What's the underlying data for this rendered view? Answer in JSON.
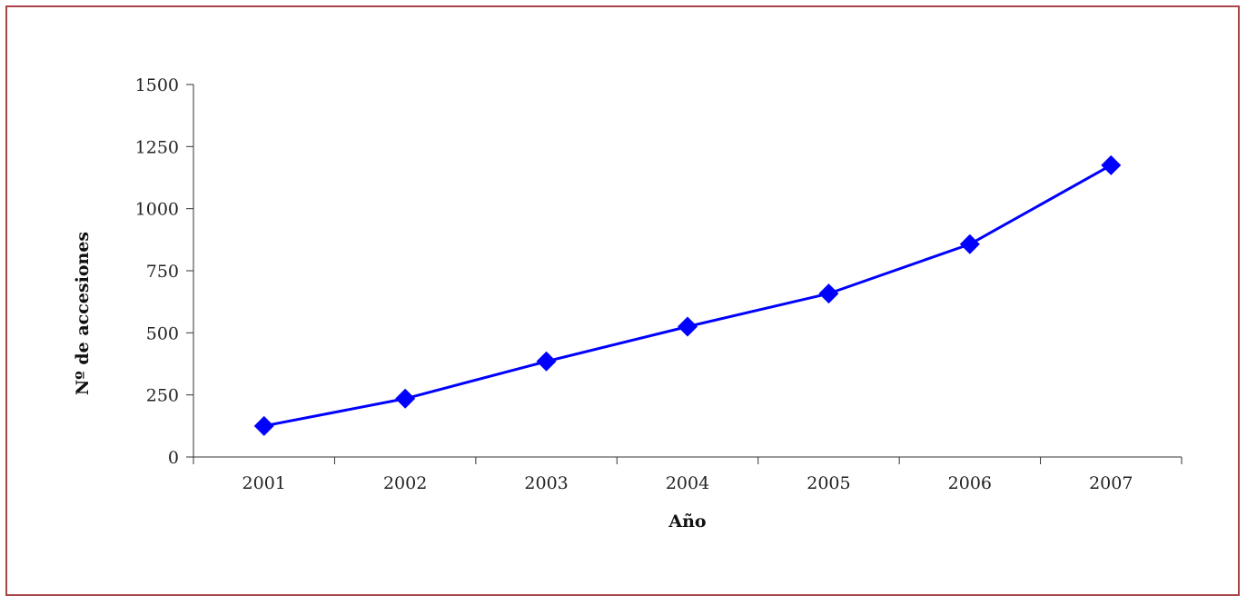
{
  "chart_data": {
    "type": "line",
    "title": "",
    "xlabel": "Año",
    "ylabel": "Nº de accesiones",
    "categories": [
      "2001",
      "2002",
      "2003",
      "2004",
      "2005",
      "2006",
      "2007"
    ],
    "series": [
      {
        "values": [
          125,
          235,
          385,
          525,
          658,
          857,
          1175
        ],
        "color": "#0000ff",
        "marker": "diamond"
      }
    ],
    "ylim": [
      0,
      1500
    ],
    "yticks": [
      0,
      250,
      500,
      750,
      1000,
      1250,
      1500
    ],
    "grid": false,
    "legend": "none"
  },
  "colors": {
    "frame_border": "#a94447",
    "axis": "#333333",
    "series": "#0000ff"
  }
}
